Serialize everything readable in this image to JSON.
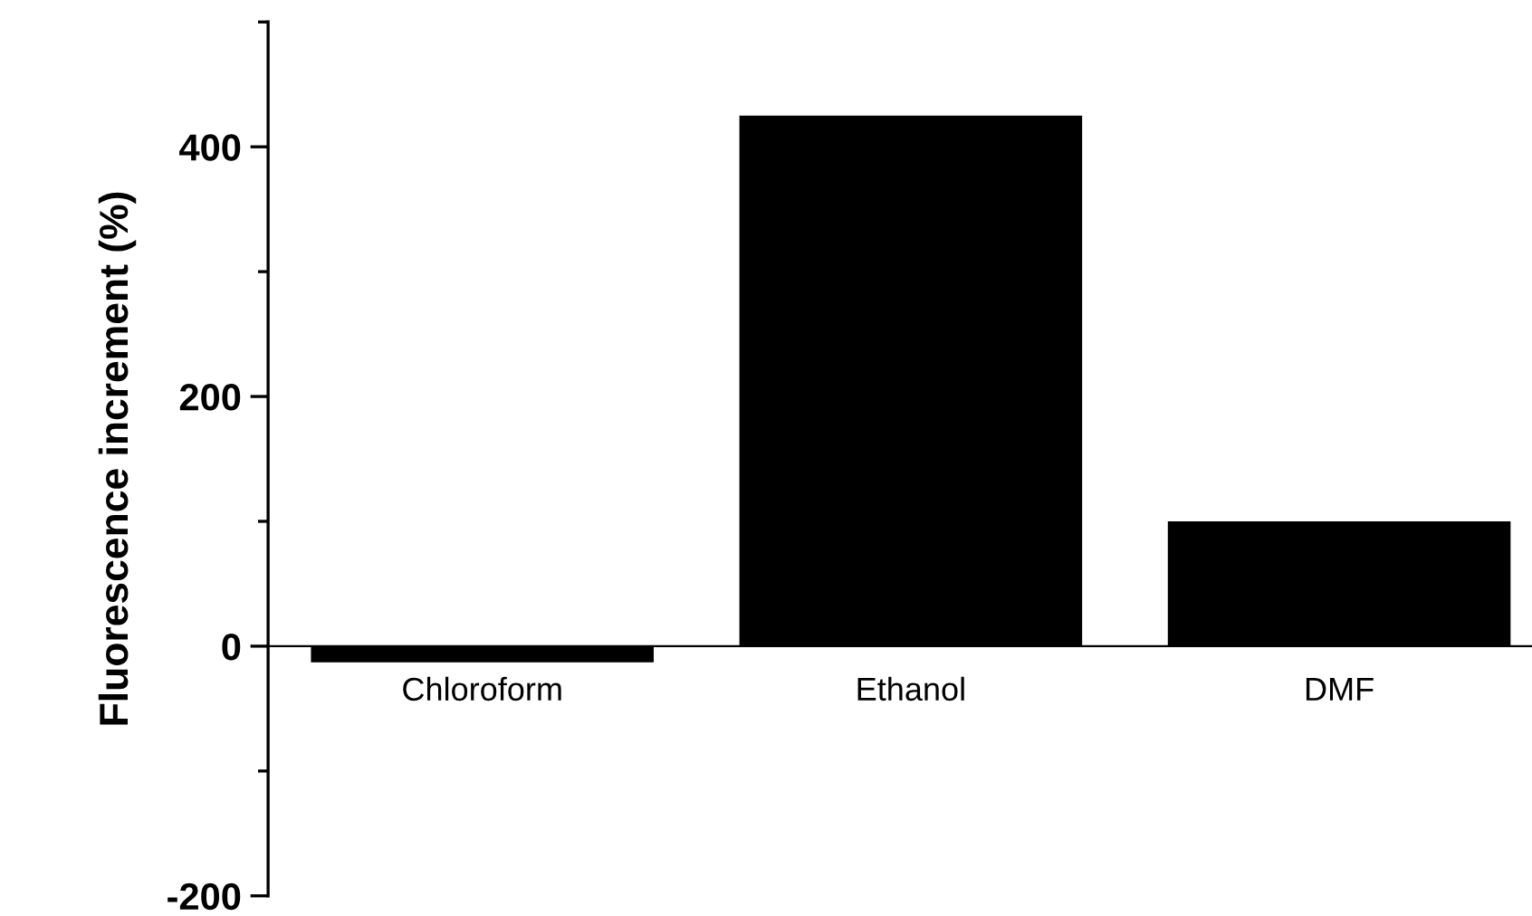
{
  "chart_data": {
    "type": "bar",
    "ylabel": "Fluorescence increment (%)",
    "categories": [
      "Chloroform",
      "Ethanol",
      "DMF"
    ],
    "values": [
      -13,
      425,
      100
    ],
    "color": "#000000",
    "ylim": [
      -200,
      500
    ],
    "yticks": [
      -200,
      0,
      200,
      400
    ],
    "grid": false,
    "legend": false
  }
}
